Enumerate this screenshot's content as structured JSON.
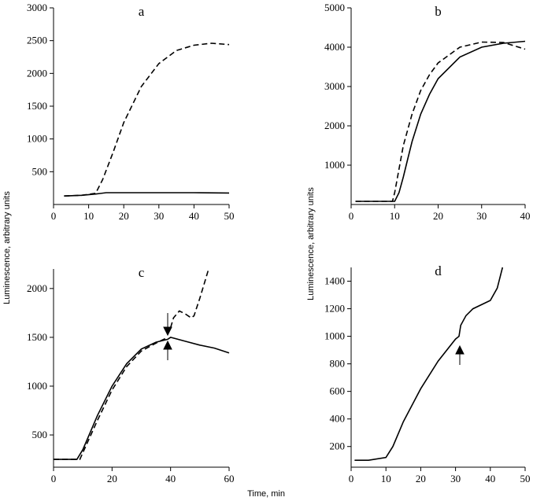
{
  "chart_data": [
    {
      "type": "line",
      "title": "a",
      "ylabel": "Luminescence, arbitrary units",
      "xlim": [
        0,
        50
      ],
      "ylim": [
        0,
        3000
      ],
      "xticks": [
        0,
        10,
        20,
        30,
        40,
        50
      ],
      "yticks": [
        500,
        1000,
        1500,
        2000,
        2500,
        3000
      ],
      "series": [
        {
          "color": "#000000",
          "style": "dashed",
          "x": [
            3,
            8,
            12,
            14,
            17,
            20,
            25,
            30,
            35,
            40,
            45,
            50
          ],
          "values": [
            130,
            140,
            170,
            380,
            800,
            1250,
            1800,
            2150,
            2350,
            2430,
            2460,
            2440
          ]
        },
        {
          "color": "#000000",
          "style": "solid",
          "x": [
            3,
            8,
            12,
            15,
            20,
            30,
            40,
            50
          ],
          "values": [
            130,
            140,
            160,
            180,
            180,
            180,
            180,
            175
          ]
        }
      ]
    },
    {
      "type": "line",
      "title": "b",
      "ylabel": "Luminescence, arbitrary units",
      "xlim": [
        0,
        40
      ],
      "ylim": [
        0,
        5000
      ],
      "xticks": [
        0,
        10,
        20,
        30,
        40
      ],
      "yticks": [
        1000,
        2000,
        3000,
        4000,
        5000
      ],
      "series": [
        {
          "color": "#000000",
          "style": "solid",
          "x": [
            1,
            10,
            11,
            12,
            13,
            14,
            16,
            18,
            20,
            25,
            30,
            35,
            40
          ],
          "values": [
            80,
            80,
            300,
            700,
            1150,
            1600,
            2300,
            2800,
            3200,
            3750,
            4000,
            4100,
            4150
          ]
        },
        {
          "color": "#000000",
          "style": "dashed",
          "x": [
            1,
            9.5,
            10,
            11,
            12,
            14,
            16,
            18,
            20,
            25,
            30,
            35,
            40
          ],
          "values": [
            80,
            80,
            300,
            900,
            1500,
            2300,
            2900,
            3300,
            3600,
            4000,
            4130,
            4120,
            3950
          ]
        }
      ]
    },
    {
      "type": "line",
      "title": "c",
      "xlabel": "Time, min",
      "xlim": [
        0,
        60
      ],
      "ylim": [
        170,
        2200
      ],
      "xticks": [
        0,
        20,
        40,
        60
      ],
      "yticks": [
        500,
        1000,
        1500,
        2000
      ],
      "series": [
        {
          "color": "#000000",
          "style": "solid",
          "x": [
            0,
            8,
            10,
            15,
            20,
            25,
            30,
            35,
            39,
            40,
            45,
            50,
            55,
            60
          ],
          "values": [
            250,
            250,
            350,
            700,
            1000,
            1230,
            1380,
            1450,
            1480,
            1500,
            1460,
            1420,
            1390,
            1340
          ]
        },
        {
          "color": "#000000",
          "style": "dashed",
          "x": [
            0,
            9,
            12,
            15,
            20,
            25,
            30,
            35,
            39,
            39.5,
            40,
            41,
            43,
            45,
            47,
            48,
            50,
            52,
            53
          ],
          "values": [
            250,
            250,
            450,
            650,
            960,
            1200,
            1360,
            1440,
            1500,
            null,
            1600,
            1700,
            1770,
            1740,
            1700,
            1720,
            1900,
            2100,
            2200
          ]
        }
      ]
    },
    {
      "type": "line",
      "title": "d",
      "xlim": [
        0,
        50
      ],
      "ylim": [
        50,
        1500
      ],
      "xticks": [
        0,
        10,
        20,
        30,
        40,
        50
      ],
      "yticks": [
        200,
        400,
        600,
        800,
        1000,
        1200,
        1400
      ],
      "series": [
        {
          "color": "#000000",
          "style": "solid",
          "x": [
            1,
            5,
            10,
            12,
            15,
            20,
            25,
            30,
            31,
            31.5,
            33,
            35,
            40,
            42,
            43.5
          ],
          "values": [
            100,
            100,
            120,
            200,
            380,
            620,
            820,
            980,
            1000,
            1080,
            1150,
            1200,
            1260,
            1350,
            1500
          ]
        }
      ]
    }
  ]
}
